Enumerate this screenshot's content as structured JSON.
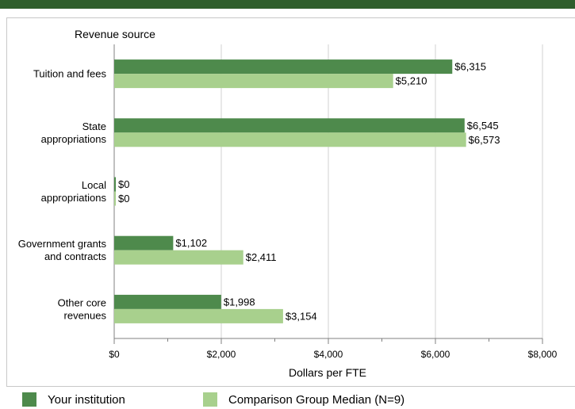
{
  "chart_data": {
    "type": "bar",
    "orientation": "horizontal",
    "title": "Revenue source",
    "xlabel": "Dollars per FTE",
    "ylabel": "Revenue source",
    "xlim": [
      0,
      8000
    ],
    "x_ticks": [
      "$0",
      "$2,000",
      "$4,000",
      "$6,000",
      "$8,000"
    ],
    "grid": true,
    "legend_position": "bottom",
    "categories": [
      [
        "Tuition and fees"
      ],
      [
        "State",
        "appropriations"
      ],
      [
        "Local",
        "appropriations"
      ],
      [
        "Government grants",
        "and contracts"
      ],
      [
        "Other core",
        "revenues"
      ]
    ],
    "series": [
      {
        "name": "Your institution",
        "color": "#4e8a4c",
        "values": [
          6315,
          6545,
          0,
          1102,
          1998
        ],
        "labels": [
          "$6,315",
          "$6,545",
          "$0",
          "$1,102",
          "$1,998"
        ]
      },
      {
        "name": "Comparison Group Median (N=9)",
        "color": "#a8d08d",
        "values": [
          5210,
          6573,
          0,
          2411,
          3154
        ],
        "labels": [
          "$5,210",
          "$6,573",
          "$0",
          "$2,411",
          "$3,154"
        ]
      }
    ]
  }
}
